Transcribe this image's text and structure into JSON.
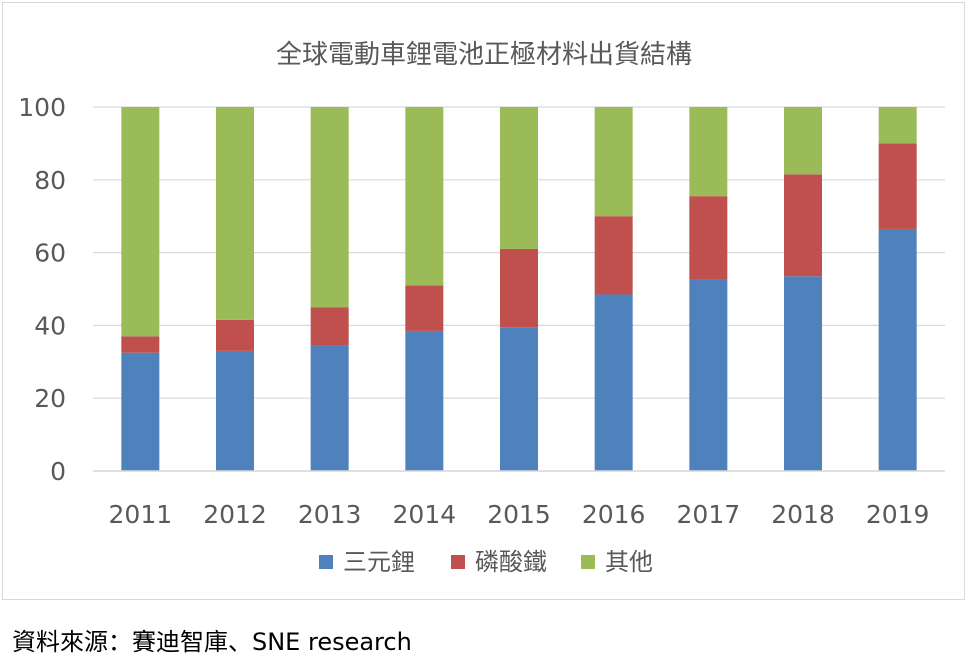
{
  "chart_data": {
    "type": "bar",
    "stacked": true,
    "title": "全球電動車鋰電池正極材料出貨結構",
    "xlabel": "",
    "ylabel": "",
    "categories": [
      "2011",
      "2012",
      "2013",
      "2014",
      "2015",
      "2016",
      "2017",
      "2018",
      "2019"
    ],
    "series": [
      {
        "name": "三元鋰",
        "color": "#4f81bd",
        "values": [
          32.5,
          33,
          34.5,
          38.5,
          39.5,
          48.5,
          52.5,
          53.5,
          66.5
        ]
      },
      {
        "name": "磷酸鐵",
        "color": "#c0504d",
        "values": [
          4.5,
          8.5,
          10.5,
          12.5,
          21.5,
          21.5,
          23,
          28,
          23.5
        ]
      },
      {
        "name": "其他",
        "color": "#9bbb59",
        "values": [
          63,
          58.5,
          55,
          49,
          39,
          30,
          24.5,
          18.5,
          10
        ]
      }
    ],
    "ylim": [
      0,
      100
    ],
    "yticks": [
      "0",
      "20",
      "40",
      "60",
      "80",
      "100"
    ],
    "grid": true,
    "legend": "bottom"
  },
  "source": "資料來源：賽迪智庫、SNE research"
}
